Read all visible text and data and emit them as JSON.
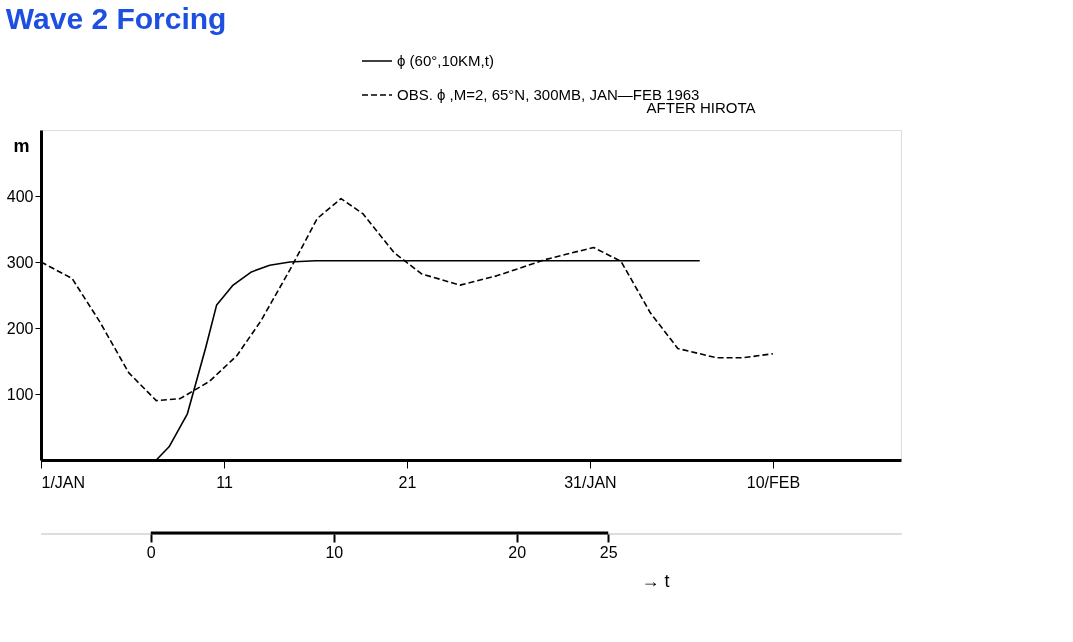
{
  "chart_data": {
    "type": "line",
    "title": "Wave 2 Forcing",
    "ylabel": "m",
    "x2label": "→ t",
    "xlim": [
      1,
      48
    ],
    "xticks": [
      {
        "value": 1,
        "label": "1/JAN"
      },
      11,
      21,
      {
        "value": 31,
        "label": "31/JAN"
      },
      {
        "value": 41,
        "label": "10/FEB"
      }
    ],
    "ylim": [
      0,
      500
    ],
    "yticks": [
      100,
      200,
      300,
      400
    ],
    "x2lim": [
      -6,
      41
    ],
    "x2ticks": [
      0,
      10,
      20,
      25
    ],
    "series": [
      {
        "name": "ϕ (60°,10KM,t)",
        "color": "#000000",
        "line_style": "solid",
        "x": [
          1,
          7.3,
          8,
          9,
          10,
          10.6,
          11.5,
          12.5,
          13.5,
          14.6,
          16,
          37
        ],
        "values": [
          0,
          0,
          20,
          70,
          170,
          235,
          265,
          285,
          295,
          300,
          302,
          302
        ]
      },
      {
        "name": "OBS. ϕ ,M=2, 65°N, 300MB, JAN—FEB 1963",
        "color": "#000000",
        "line_style": "dashed",
        "x": [
          1,
          2.7,
          4.2,
          5.8,
          7.3,
          8.6,
          10.2,
          11.7,
          13,
          14.6,
          16.1,
          17.4,
          18.6,
          20.3,
          21.8,
          23.9,
          25.9,
          28.6,
          31.2,
          32.7,
          34.3,
          35.8,
          37.9,
          39.4,
          41
        ],
        "values": [
          300,
          275,
          210,
          132,
          90,
          93,
          119,
          158,
          210,
          288,
          366,
          396,
          373,
          314,
          282,
          265,
          279,
          304,
          322,
          301,
          223,
          169,
          155,
          155,
          161
        ]
      }
    ],
    "legend": "top right",
    "grid": false,
    "marker": "none",
    "annotations": [
      "AFTER HIROTA"
    ]
  }
}
